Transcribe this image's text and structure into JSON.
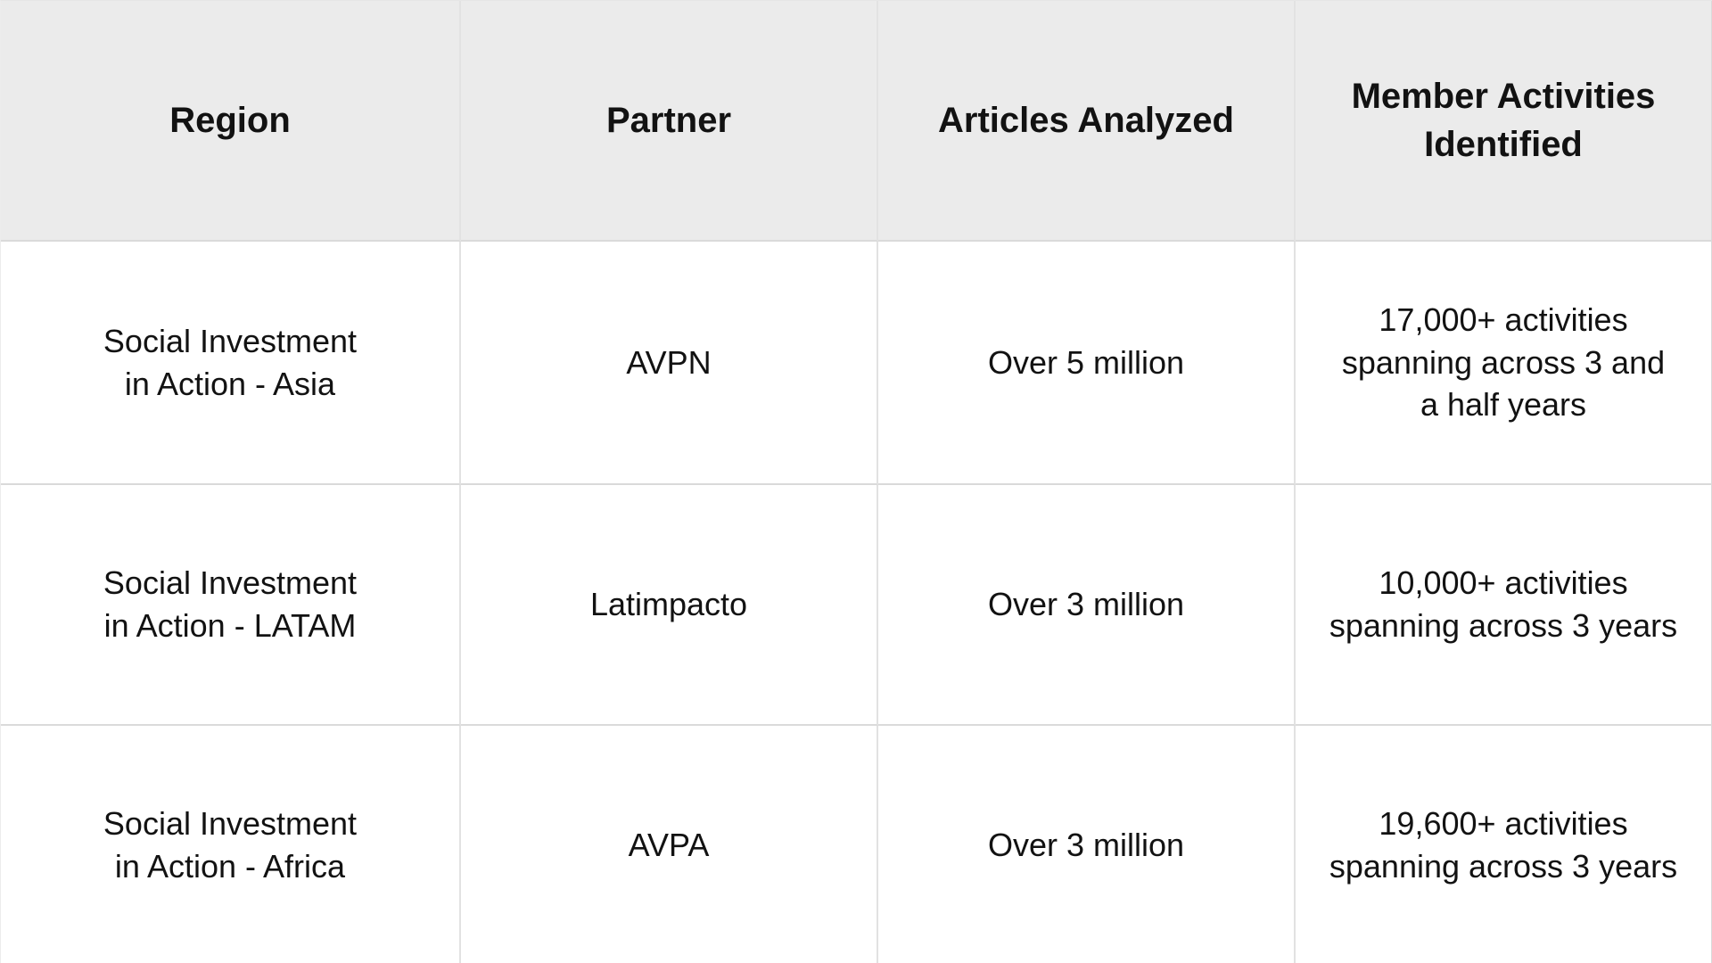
{
  "table": {
    "header": {
      "region": "Region",
      "partner": "Partner",
      "articles": "Articles Analyzed",
      "activities": "Member Activities\nIdentified"
    },
    "rows": [
      {
        "region": "Social Investment\nin Action - Asia",
        "partner": "AVPN",
        "articles": "Over 5 million",
        "activities": "17,000+ activities\nspanning across 3 and\na half years"
      },
      {
        "region": "Social Investment\nin Action - LATAM",
        "partner": "Latimpacto",
        "articles": "Over 3 million",
        "activities": "10,000+ activities\nspanning across 3 years"
      },
      {
        "region": "Social Investment\nin Action - Africa",
        "partner": "AVPA",
        "articles": "Over 3 million",
        "activities": "19,600+ activities\nspanning across 3 years"
      }
    ]
  },
  "colors": {
    "header_background": "#EBEBEB",
    "body_background": "#FFFFFF",
    "row_divider": "#DADADA",
    "column_divider": "#E2E2E2",
    "text": "#121212"
  },
  "chart_data": {
    "type": "table",
    "columns": [
      "Region",
      "Partner",
      "Articles Analyzed",
      "Member Activities Identified"
    ],
    "rows": [
      [
        "Social Investment in Action - Asia",
        "AVPN",
        "Over 5 million",
        "17,000+ activities spanning across 3 and a half years"
      ],
      [
        "Social Investment in Action - LATAM",
        "Latimpacto",
        "Over 3 million",
        "10,000+ activities spanning across 3 years"
      ],
      [
        "Social Investment in Action - Africa",
        "AVPA",
        "Over 3 million",
        "19,600+ activities spanning across 3 years"
      ]
    ]
  }
}
